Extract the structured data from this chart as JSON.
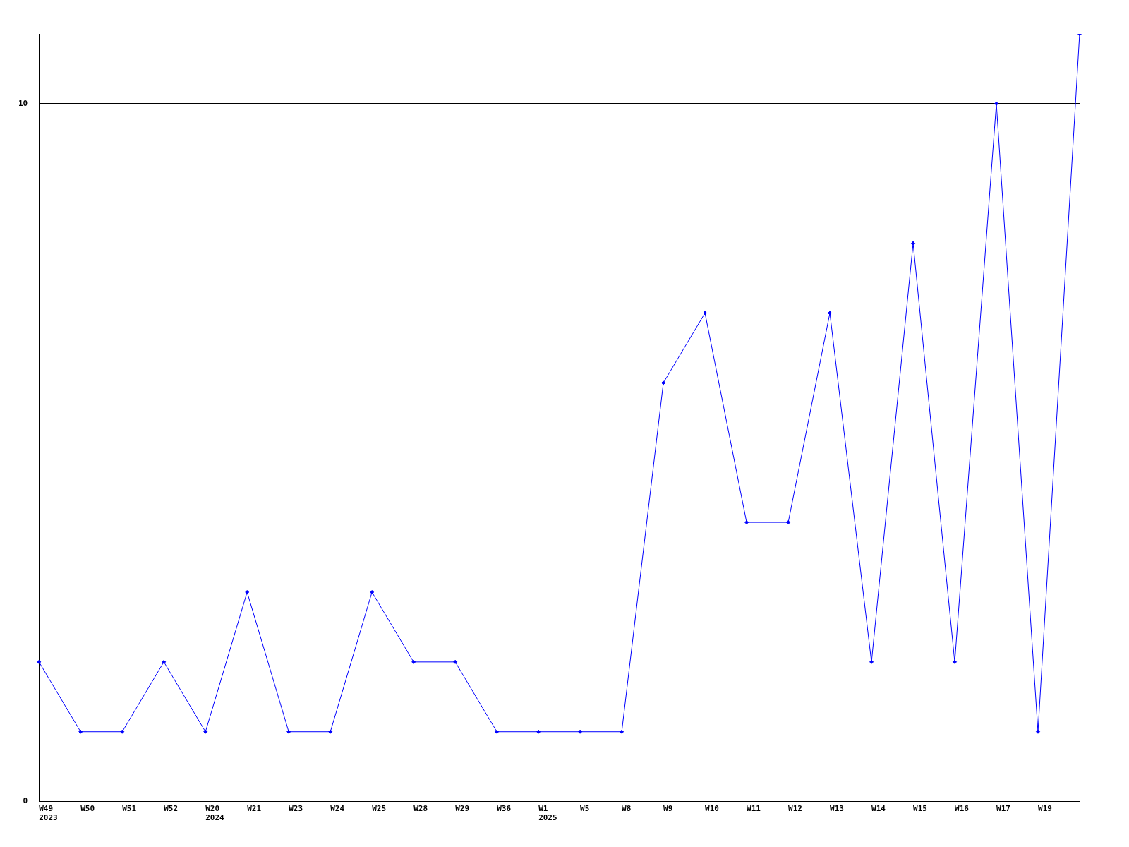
{
  "chart_data": {
    "type": "line",
    "categories": [
      "W49\n2023",
      "W50",
      "W51",
      "W52",
      "W20\n2024",
      "W21",
      "W23",
      "W24",
      "W25",
      "W28",
      "W29",
      "W36",
      "W1\n2025",
      "W5",
      "W8",
      "W9",
      "W10",
      "W11",
      "W12",
      "W13",
      "W14",
      "W15",
      "W16",
      "W17",
      "W19",
      null
    ],
    "series": [
      {
        "color": "#0000ff",
        "values": [
          2,
          1,
          1,
          2,
          1,
          3,
          1,
          1,
          3,
          2,
          2,
          1,
          1,
          1,
          1,
          6,
          7,
          4,
          4,
          7,
          2,
          8,
          2,
          10,
          1,
          11
        ]
      }
    ],
    "ylim": [
      0,
      11
    ],
    "yticks": [
      0,
      10
    ],
    "grid": "y",
    "legend": false,
    "marker": "diamond",
    "line_style": "solid"
  }
}
